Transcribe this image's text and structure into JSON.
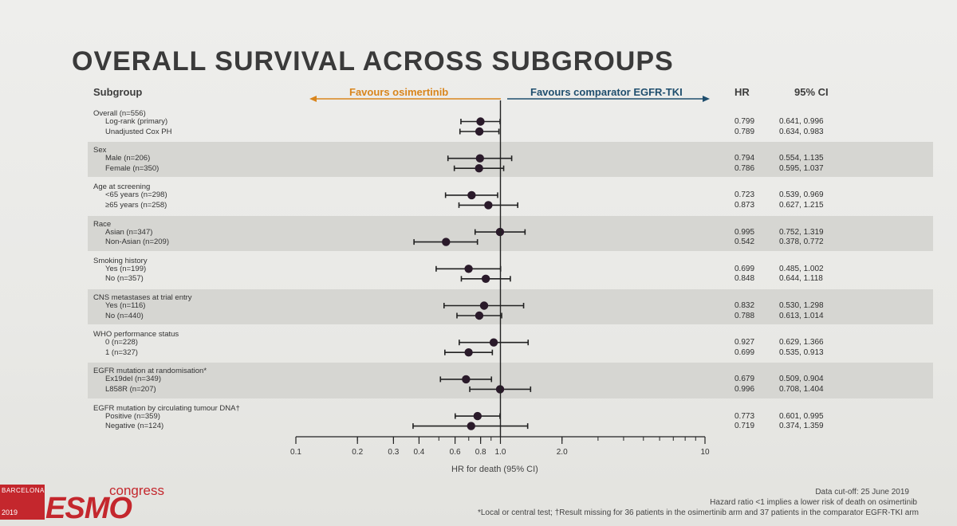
{
  "title": "OVERALL SURVIVAL ACROSS SUBGROUPS",
  "headers": {
    "subgroup": "Subgroup",
    "hr": "HR",
    "ci": "95% CI",
    "favours_left": "Favours osimertinib",
    "favours_right": "Favours comparator EGFR-TKI"
  },
  "colors": {
    "favours_left": "#d9851c",
    "favours_right": "#1f4e6e",
    "brand": "#c4272d"
  },
  "chart_data": {
    "type": "forest",
    "xscale": "log",
    "xlim": [
      0.1,
      10
    ],
    "ticks": [
      0.1,
      0.2,
      0.3,
      0.4,
      0.6,
      0.8,
      1.0,
      2.0,
      10
    ],
    "tick_labels": [
      "0.1",
      "0.2",
      "0.3",
      "0.4",
      "0.6",
      "0.8",
      "1.0",
      "2.0",
      "10"
    ],
    "reference_line": 1.0,
    "xlabel": "HR for death (95% CI)",
    "groups": [
      {
        "label": "Overall (n=556)",
        "shaded": false,
        "rows": [
          {
            "label": "Log-rank (primary)",
            "hr": 0.799,
            "lo": 0.641,
            "hi": 0.996,
            "hr_text": "0.799",
            "ci_text": "0.641, 0.996"
          },
          {
            "label": "Unadjusted Cox PH",
            "hr": 0.789,
            "lo": 0.634,
            "hi": 0.983,
            "hr_text": "0.789",
            "ci_text": "0.634, 0.983"
          }
        ]
      },
      {
        "label": "Sex",
        "shaded": true,
        "rows": [
          {
            "label": "Male (n=206)",
            "hr": 0.794,
            "lo": 0.554,
            "hi": 1.135,
            "hr_text": "0.794",
            "ci_text": "0.554, 1.135"
          },
          {
            "label": "Female (n=350)",
            "hr": 0.786,
            "lo": 0.595,
            "hi": 1.037,
            "hr_text": "0.786",
            "ci_text": "0.595, 1.037"
          }
        ]
      },
      {
        "label": "Age at screening",
        "shaded": false,
        "rows": [
          {
            "label": "<65 years (n=298)",
            "hr": 0.723,
            "lo": 0.539,
            "hi": 0.969,
            "hr_text": "0.723",
            "ci_text": "0.539, 0.969"
          },
          {
            "label": "≥65 years (n=258)",
            "hr": 0.873,
            "lo": 0.627,
            "hi": 1.215,
            "hr_text": "0.873",
            "ci_text": "0.627, 1.215"
          }
        ]
      },
      {
        "label": "Race",
        "shaded": true,
        "rows": [
          {
            "label": "Asian (n=347)",
            "hr": 0.995,
            "lo": 0.752,
            "hi": 1.319,
            "hr_text": "0.995",
            "ci_text": "0.752, 1.319"
          },
          {
            "label": "Non-Asian (n=209)",
            "hr": 0.542,
            "lo": 0.378,
            "hi": 0.772,
            "hr_text": "0.542",
            "ci_text": "0.378, 0.772"
          }
        ]
      },
      {
        "label": "Smoking history",
        "shaded": false,
        "rows": [
          {
            "label": "Yes (n=199)",
            "hr": 0.699,
            "lo": 0.485,
            "hi": 1.002,
            "hr_text": "0.699",
            "ci_text": "0.485, 1.002"
          },
          {
            "label": "No (n=357)",
            "hr": 0.848,
            "lo": 0.644,
            "hi": 1.118,
            "hr_text": "0.848",
            "ci_text": "0.644, 1.118"
          }
        ]
      },
      {
        "label": "CNS metastases at trial entry",
        "shaded": true,
        "rows": [
          {
            "label": "Yes (n=116)",
            "hr": 0.832,
            "lo": 0.53,
            "hi": 1.298,
            "hr_text": "0.832",
            "ci_text": "0.530, 1.298"
          },
          {
            "label": "No (n=440)",
            "hr": 0.788,
            "lo": 0.613,
            "hi": 1.014,
            "hr_text": "0.788",
            "ci_text": "0.613, 1.014"
          }
        ]
      },
      {
        "label": "WHO performance status",
        "shaded": false,
        "rows": [
          {
            "label": "0 (n=228)",
            "hr": 0.927,
            "lo": 0.629,
            "hi": 1.366,
            "hr_text": "0.927",
            "ci_text": "0.629, 1.366"
          },
          {
            "label": "1 (n=327)",
            "hr": 0.699,
            "lo": 0.535,
            "hi": 0.913,
            "hr_text": "0.699",
            "ci_text": "0.535, 0.913"
          }
        ]
      },
      {
        "label": "EGFR mutation at randomisation*",
        "shaded": true,
        "rows": [
          {
            "label": "Ex19del (n=349)",
            "hr": 0.679,
            "lo": 0.509,
            "hi": 0.904,
            "hr_text": "0.679",
            "ci_text": "0.509, 0.904"
          },
          {
            "label": "L858R (n=207)",
            "hr": 0.996,
            "lo": 0.708,
            "hi": 1.404,
            "hr_text": "0.996",
            "ci_text": "0.708, 1.404"
          }
        ]
      },
      {
        "label": "EGFR mutation by circulating tumour DNA†",
        "shaded": false,
        "rows": [
          {
            "label": "Positive (n=359)",
            "hr": 0.773,
            "lo": 0.601,
            "hi": 0.995,
            "hr_text": "0.773",
            "ci_text": "0.601, 0.995"
          },
          {
            "label": "Negative (n=124)",
            "hr": 0.719,
            "lo": 0.374,
            "hi": 1.359,
            "hr_text": "0.719",
            "ci_text": "0.374, 1.359"
          }
        ]
      }
    ]
  },
  "footer": {
    "cutoff": "Data cut-off: 25 June 2019",
    "note1": "Hazard ratio <1 implies a lower risk of death on osimertinib",
    "note2": "*Local or central test; †Result missing for 36 patients in the osimertinib arm and 37 patients in the comparator EGFR-TKI arm"
  },
  "logo": {
    "city": "BARCELONA",
    "year": "2019",
    "name": "ESMO",
    "word": "congress"
  }
}
